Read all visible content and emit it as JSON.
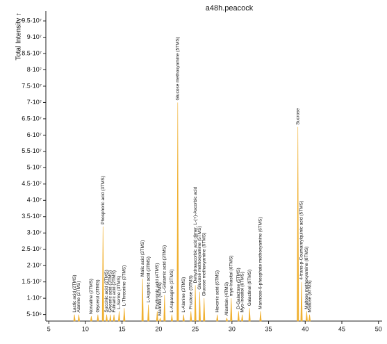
{
  "chart_data": {
    "type": "spectrum",
    "title": "a48h.peacock",
    "y_label": "Total Intensity ↑",
    "color": "#f0b030",
    "xlim": [
      4.6,
      50.5
    ],
    "ylim": [
      3000000,
      98000000
    ],
    "xticks": [
      5,
      10,
      15,
      20,
      25,
      30,
      35,
      40,
      45,
      50
    ],
    "yticks": [
      {
        "value": 5000000,
        "label": "5·10⁶"
      },
      {
        "value": 10000000,
        "label": "1·10⁷"
      },
      {
        "value": 15000000,
        "label": "1.5·10⁷"
      },
      {
        "value": 20000000,
        "label": "2·10⁷"
      },
      {
        "value": 25000000,
        "label": "2.5·10⁷"
      },
      {
        "value": 30000000,
        "label": "3·10⁷"
      },
      {
        "value": 35000000,
        "label": "3.5·10⁷"
      },
      {
        "value": 40000000,
        "label": "4·10⁷"
      },
      {
        "value": 45000000,
        "label": "4.5·10⁷"
      },
      {
        "value": 50000000,
        "label": "5·10⁷"
      },
      {
        "value": 55000000,
        "label": "5.5·10⁷"
      },
      {
        "value": 60000000,
        "label": "6·10⁷"
      },
      {
        "value": 65000000,
        "label": "6.5·10⁷"
      },
      {
        "value": 70000000,
        "label": "7·10⁷"
      },
      {
        "value": 75000000,
        "label": "7.5·10⁷"
      },
      {
        "value": 80000000,
        "label": "8·10⁷"
      },
      {
        "value": 85000000,
        "label": "8.5·10⁷"
      },
      {
        "value": 90000000,
        "label": "9·10⁷"
      },
      {
        "value": 95000000,
        "label": "9.5·10⁷"
      }
    ],
    "peaks": {
      "x": [
        8.5,
        9.1,
        10.8,
        11.7,
        12.4,
        12.9,
        13.4,
        13.9,
        14.6,
        15.3,
        17.8,
        18.6,
        19.8,
        20.2,
        20.8,
        21.8,
        22.6,
        23.4,
        24.4,
        25.0,
        25.6,
        26.2,
        28.0,
        29.3,
        29.9,
        30.9,
        31.4,
        32.4,
        33.9,
        39.0,
        39.5,
        40.2,
        40.6
      ],
      "values": [
        5000000,
        5000000,
        4500000,
        5000000,
        32000000,
        5000000,
        5000000,
        5000000,
        6000000,
        7000000,
        16000000,
        8000000,
        6000000,
        4000000,
        11000000,
        5000000,
        70000000,
        5000000,
        6000000,
        14000000,
        12000000,
        10000000,
        5000000,
        4000000,
        10000000,
        6000000,
        5000000,
        7000000,
        6000000,
        62500000,
        15000000,
        6000000,
        5000000
      ],
      "labels": [
        "Lactic acid (2TMS)",
        "Alanine (2TMS)",
        "Norvaline (2TMS)",
        "Glycerol (3TMS)",
        "Phosphoric acid (3TMS)",
        "Succinic acid (2TMS)",
        "Glyceric acid (3TMS)",
        "Fumaric acid (2TMS)",
        "L-Serine (3TMS)",
        "L-Threonine (3TMS)",
        "Malic acid (3TMS)",
        "L-Aspartic acid (3TMS)",
        "Erythronic acid (4TMS)",
        "Mannitol (6TMS)",
        "L-Glutamic acid (3TMS)",
        "L-Asparagine (3TMS)",
        "Glucose methoxyamine (5TMS)",
        "L-Alanine (3TMS)",
        "Fructose (5TMS)",
        "Dehydroascorbic acid dimer, L-(+)-Ascorbic acid",
        "Glucose methoxyamine (5TMS)",
        "Glucose methoxyamine (5TMS)",
        "Hexonic acid (6TMS)",
        "Allantoin (4TMS)",
        "myo-Inositol (6TMS)",
        "D-Galactose (5TMS)",
        "Myo-Inositol (6TMS)",
        "Galactinol (9TMS)",
        "Mannose-6-phosphate methoxyamine (6TMS)",
        "Sucrose",
        "4-trans-p-Coumaroylquinic acid (5TMS)",
        "Maltose methoxyamine (8TMS)",
        "Maltose (8TMS)"
      ]
    }
  }
}
